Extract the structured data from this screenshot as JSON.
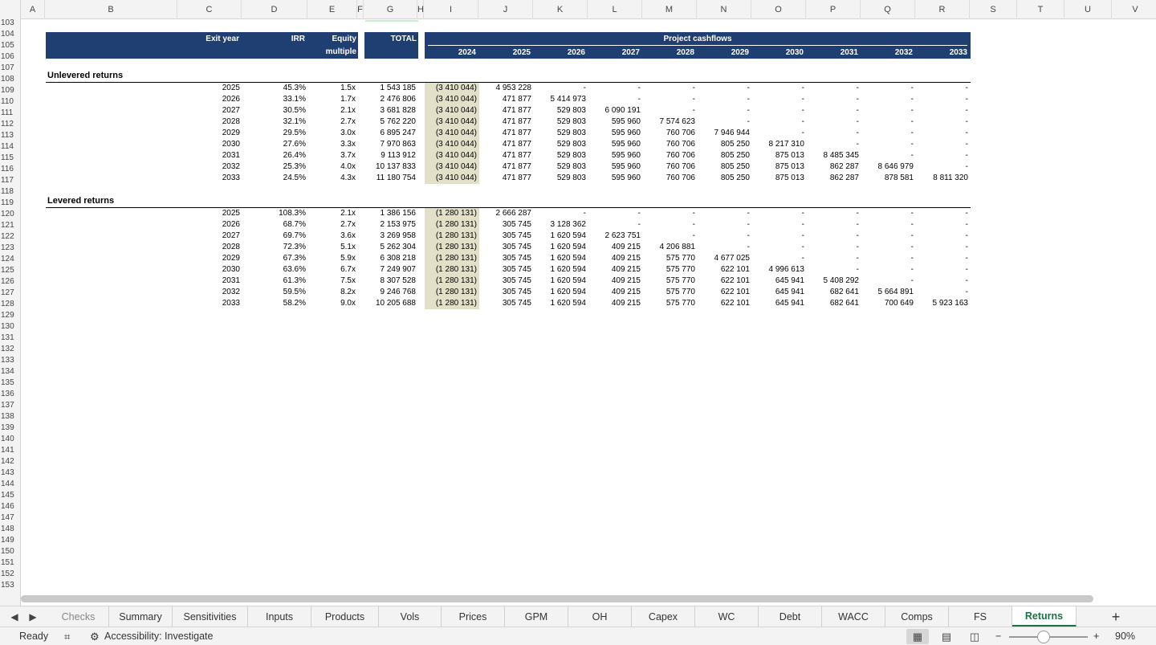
{
  "columns": [
    {
      "label": "A",
      "w": 30
    },
    {
      "label": "B",
      "w": 165
    },
    {
      "label": "C",
      "w": 80
    },
    {
      "label": "D",
      "w": 82
    },
    {
      "label": "E",
      "w": 62
    },
    {
      "label": "F",
      "w": 8
    },
    {
      "label": "G",
      "w": 67
    },
    {
      "label": "H",
      "w": 8
    },
    {
      "label": "I",
      "w": 68
    },
    {
      "label": "J",
      "w": 68
    },
    {
      "label": "K",
      "w": 68
    },
    {
      "label": "L",
      "w": 68
    },
    {
      "label": "M",
      "w": 68
    },
    {
      "label": "N",
      "w": 68
    },
    {
      "label": "O",
      "w": 68
    },
    {
      "label": "P",
      "w": 68
    },
    {
      "label": "Q",
      "w": 68
    },
    {
      "label": "R",
      "w": 68
    },
    {
      "label": "S",
      "w": 59
    },
    {
      "label": "T",
      "w": 59
    },
    {
      "label": "U",
      "w": 59
    },
    {
      "label": "V",
      "w": 59
    }
  ],
  "rows": {
    "first": 103,
    "last": 153
  },
  "header": {
    "exit_year": "Exit year",
    "irr": "IRR",
    "equity": "Equity",
    "multiple": "multiple",
    "total": "TOTAL",
    "project_cashflows": "Project cashflows",
    "years": [
      "2024",
      "2025",
      "2026",
      "2027",
      "2028",
      "2029",
      "2030",
      "2031",
      "2032",
      "2033"
    ]
  },
  "unlevered": {
    "title": "Unlevered returns",
    "rows": [
      {
        "year": "2025",
        "irr": "45.3%",
        "mult": "1.5x",
        "total": "1 543 185",
        "cf": [
          "(3 410 044)",
          "4 953 228",
          "-",
          "-",
          "-",
          "-",
          "-",
          "-",
          "-",
          "-"
        ]
      },
      {
        "year": "2026",
        "irr": "33.1%",
        "mult": "1.7x",
        "total": "2 476 806",
        "cf": [
          "(3 410 044)",
          "471 877",
          "5 414 973",
          "-",
          "-",
          "-",
          "-",
          "-",
          "-",
          "-"
        ]
      },
      {
        "year": "2027",
        "irr": "30.5%",
        "mult": "2.1x",
        "total": "3 681 828",
        "cf": [
          "(3 410 044)",
          "471 877",
          "529 803",
          "6 090 191",
          "-",
          "-",
          "-",
          "-",
          "-",
          "-"
        ]
      },
      {
        "year": "2028",
        "irr": "32.1%",
        "mult": "2.7x",
        "total": "5 762 220",
        "cf": [
          "(3 410 044)",
          "471 877",
          "529 803",
          "595 960",
          "7 574 623",
          "-",
          "-",
          "-",
          "-",
          "-"
        ]
      },
      {
        "year": "2029",
        "irr": "29.5%",
        "mult": "3.0x",
        "total": "6 895 247",
        "cf": [
          "(3 410 044)",
          "471 877",
          "529 803",
          "595 960",
          "760 706",
          "7 946 944",
          "-",
          "-",
          "-",
          "-"
        ]
      },
      {
        "year": "2030",
        "irr": "27.6%",
        "mult": "3.3x",
        "total": "7 970 863",
        "cf": [
          "(3 410 044)",
          "471 877",
          "529 803",
          "595 960",
          "760 706",
          "805 250",
          "8 217 310",
          "-",
          "-",
          "-"
        ]
      },
      {
        "year": "2031",
        "irr": "26.4%",
        "mult": "3.7x",
        "total": "9 113 912",
        "cf": [
          "(3 410 044)",
          "471 877",
          "529 803",
          "595 960",
          "760 706",
          "805 250",
          "875 013",
          "8 485 345",
          "-",
          "-"
        ]
      },
      {
        "year": "2032",
        "irr": "25.3%",
        "mult": "4.0x",
        "total": "10 137 833",
        "cf": [
          "(3 410 044)",
          "471 877",
          "529 803",
          "595 960",
          "760 706",
          "805 250",
          "875 013",
          "862 287",
          "8 646 979",
          "-"
        ]
      },
      {
        "year": "2033",
        "irr": "24.5%",
        "mult": "4.3x",
        "total": "11 180 754",
        "cf": [
          "(3 410 044)",
          "471 877",
          "529 803",
          "595 960",
          "760 706",
          "805 250",
          "875 013",
          "862 287",
          "878 581",
          "8 811 320"
        ]
      }
    ]
  },
  "levered": {
    "title": "Levered returns",
    "rows": [
      {
        "year": "2025",
        "irr": "108.3%",
        "mult": "2.1x",
        "total": "1 386 156",
        "cf": [
          "(1 280 131)",
          "2 666 287",
          "-",
          "-",
          "-",
          "-",
          "-",
          "-",
          "-",
          "-"
        ]
      },
      {
        "year": "2026",
        "irr": "68.7%",
        "mult": "2.7x",
        "total": "2 153 975",
        "cf": [
          "(1 280 131)",
          "305 745",
          "3 128 362",
          "-",
          "-",
          "-",
          "-",
          "-",
          "-",
          "-"
        ]
      },
      {
        "year": "2027",
        "irr": "69.7%",
        "mult": "3.6x",
        "total": "3 269 958",
        "cf": [
          "(1 280 131)",
          "305 745",
          "1 620 594",
          "2 623 751",
          "-",
          "-",
          "-",
          "-",
          "-",
          "-"
        ]
      },
      {
        "year": "2028",
        "irr": "72.3%",
        "mult": "5.1x",
        "total": "5 262 304",
        "cf": [
          "(1 280 131)",
          "305 745",
          "1 620 594",
          "409 215",
          "4 206 881",
          "-",
          "-",
          "-",
          "-",
          "-"
        ]
      },
      {
        "year": "2029",
        "irr": "67.3%",
        "mult": "5.9x",
        "total": "6 308 218",
        "cf": [
          "(1 280 131)",
          "305 745",
          "1 620 594",
          "409 215",
          "575 770",
          "4 677 025",
          "-",
          "-",
          "-",
          "-"
        ]
      },
      {
        "year": "2030",
        "irr": "63.6%",
        "mult": "6.7x",
        "total": "7 249 907",
        "cf": [
          "(1 280 131)",
          "305 745",
          "1 620 594",
          "409 215",
          "575 770",
          "622 101",
          "4 996 613",
          "-",
          "-",
          "-"
        ]
      },
      {
        "year": "2031",
        "irr": "61.3%",
        "mult": "7.5x",
        "total": "8 307 528",
        "cf": [
          "(1 280 131)",
          "305 745",
          "1 620 594",
          "409 215",
          "575 770",
          "622 101",
          "645 941",
          "5 408 292",
          "-",
          "-"
        ]
      },
      {
        "year": "2032",
        "irr": "59.5%",
        "mult": "8.2x",
        "total": "9 246 768",
        "cf": [
          "(1 280 131)",
          "305 745",
          "1 620 594",
          "409 215",
          "575 770",
          "622 101",
          "645 941",
          "682 641",
          "5 664 891",
          "-"
        ]
      },
      {
        "year": "2033",
        "irr": "58.2%",
        "mult": "9.0x",
        "total": "10 205 688",
        "cf": [
          "(1 280 131)",
          "305 745",
          "1 620 594",
          "409 215",
          "575 770",
          "622 101",
          "645 941",
          "682 641",
          "700 649",
          "5 923 163"
        ]
      }
    ]
  },
  "tabs": [
    "Checks",
    "Summary",
    "Sensitivities",
    "Inputs",
    "Products",
    "Vols",
    "Prices",
    "GPM",
    "OH",
    "Capex",
    "WC",
    "Debt",
    "WACC",
    "Comps",
    "FS",
    "Returns"
  ],
  "active_tab": "Returns",
  "status": {
    "ready": "Ready",
    "accessibility": "Accessibility: Investigate",
    "zoom": "90%"
  },
  "icons": {
    "prev": "◀",
    "next": "▶",
    "add": "+",
    "normal_view": "▦",
    "page_layout": "▤",
    "page_break": "◫",
    "zoom_out": "−",
    "zoom_in": "+"
  },
  "colors": {
    "header_fill": "#1f3f72",
    "shade": "#e2e0c8",
    "active_tab": "#1e7145"
  }
}
